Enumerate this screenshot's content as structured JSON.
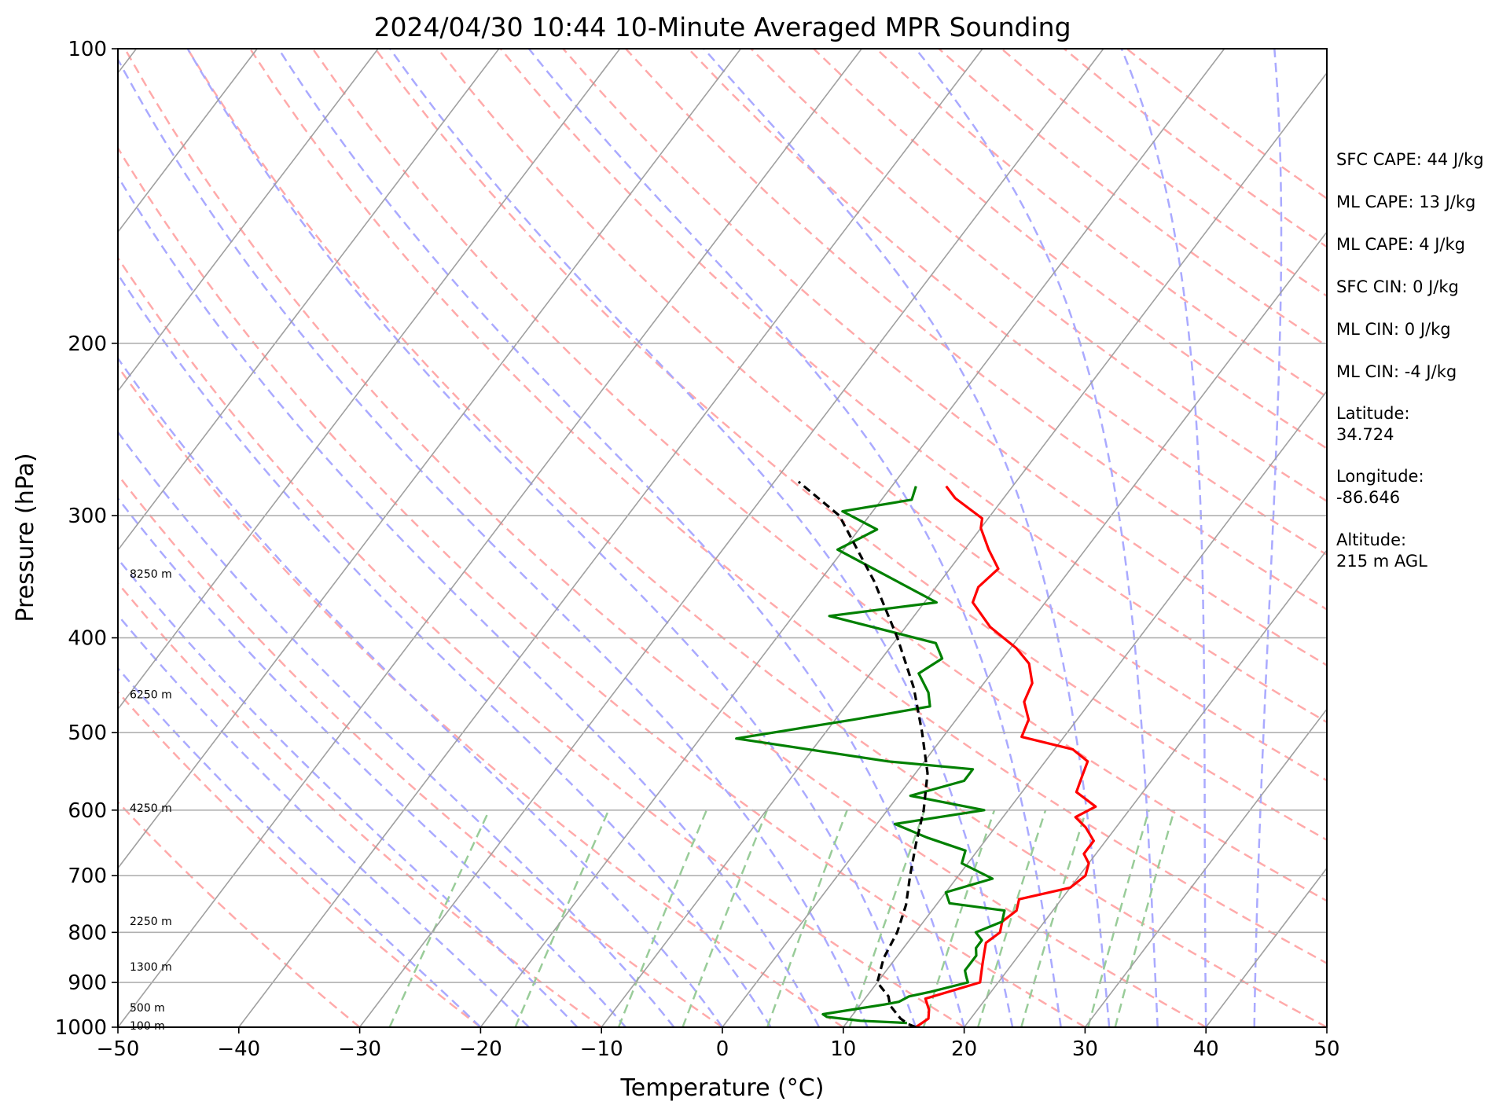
{
  "chart_data": {
    "type": "skew-t",
    "title": "2024/04/30 10:44 10-Minute Averaged MPR Sounding",
    "xlabel": "Temperature (°C)",
    "ylabel": "Pressure (hPa)",
    "xlim": [
      -50,
      50
    ],
    "ylim": [
      1000,
      100
    ],
    "y_scale": "log",
    "grid": true,
    "x_ticks": [
      "−50",
      "−40",
      "−30",
      "−20",
      "−10",
      "0",
      "10",
      "20",
      "30",
      "40",
      "50"
    ],
    "y_ticks": [
      {
        "p": 100,
        "label": "100"
      },
      {
        "p": 200,
        "label": "200"
      },
      {
        "p": 300,
        "label": "300"
      },
      {
        "p": 400,
        "label": "400"
      },
      {
        "p": 500,
        "label": "500"
      },
      {
        "p": 600,
        "label": "600"
      },
      {
        "p": 700,
        "label": "700"
      },
      {
        "p": 800,
        "label": "800"
      },
      {
        "p": 900,
        "label": "900"
      },
      {
        "p": 1000,
        "label": "1000"
      }
    ],
    "height_labels": [
      {
        "p": 996,
        "label": "100 m"
      },
      {
        "p": 955,
        "label": "500 m"
      },
      {
        "p": 867,
        "label": "1300 m"
      },
      {
        "p": 779,
        "label": "2250 m"
      },
      {
        "p": 597,
        "label": "4250 m"
      },
      {
        "p": 457,
        "label": "6250 m"
      },
      {
        "p": 344,
        "label": "8250 m"
      }
    ],
    "series": [
      {
        "role": "temperature",
        "color": "#ff0000",
        "points": [
          [
            16,
            1000
          ],
          [
            16.5,
            980
          ],
          [
            16,
            960
          ],
          [
            15,
            935
          ],
          [
            18.5,
            900
          ],
          [
            18,
            880
          ],
          [
            17.5,
            860
          ],
          [
            17,
            840
          ],
          [
            16.5,
            820
          ],
          [
            17,
            800
          ],
          [
            16.5,
            780
          ],
          [
            17,
            760
          ],
          [
            16.5,
            740
          ],
          [
            20,
            720
          ],
          [
            20.5,
            700
          ],
          [
            20,
            680
          ],
          [
            19,
            665
          ],
          [
            19,
            645
          ],
          [
            17.5,
            625
          ],
          [
            16,
            610
          ],
          [
            17,
            595
          ],
          [
            14.5,
            575
          ],
          [
            14,
            555
          ],
          [
            13.5,
            535
          ],
          [
            11.5,
            520
          ],
          [
            6.5,
            505
          ],
          [
            6,
            485
          ],
          [
            4.5,
            465
          ],
          [
            4,
            445
          ],
          [
            2.5,
            425
          ],
          [
            0.5,
            410
          ],
          [
            -3,
            390
          ],
          [
            -6,
            368
          ],
          [
            -6.5,
            355
          ],
          [
            -6,
            340
          ],
          [
            -8,
            325
          ],
          [
            -10,
            309
          ],
          [
            -10.5,
            302
          ],
          [
            -14,
            288
          ],
          [
            -15.5,
            280
          ]
        ]
      },
      {
        "role": "dewpoint",
        "color": "#008000",
        "points": [
          [
            15,
            990
          ],
          [
            11,
            985
          ],
          [
            8,
            976
          ],
          [
            7.5,
            970
          ],
          [
            12,
            948
          ],
          [
            13,
            942
          ],
          [
            13.5,
            930
          ],
          [
            15,
            920
          ],
          [
            17.5,
            900
          ],
          [
            17,
            888
          ],
          [
            16.5,
            875
          ],
          [
            16.5,
            860
          ],
          [
            16.5,
            845
          ],
          [
            16,
            830
          ],
          [
            16,
            815
          ],
          [
            15,
            800
          ],
          [
            16.5,
            780
          ],
          [
            16,
            760
          ],
          [
            11,
            747
          ],
          [
            10,
            728
          ],
          [
            13,
            705
          ],
          [
            9.5,
            680
          ],
          [
            9,
            660
          ],
          [
            5,
            640
          ],
          [
            1.5,
            620
          ],
          [
            8,
            600
          ],
          [
            1,
            580
          ],
          [
            4.5,
            560
          ],
          [
            4.5,
            545
          ],
          [
            -3,
            535
          ],
          [
            -17,
            507
          ],
          [
            -8.5,
            485
          ],
          [
            -3,
            470
          ],
          [
            -4,
            455
          ],
          [
            -6,
            435
          ],
          [
            -5,
            420
          ],
          [
            -6.5,
            405
          ],
          [
            -17,
            380
          ],
          [
            -9,
            368
          ],
          [
            -20.5,
            325
          ],
          [
            -18.5,
            310
          ],
          [
            -22.5,
            297
          ],
          [
            -17.5,
            289
          ],
          [
            -18,
            280
          ]
        ]
      },
      {
        "role": "parcel",
        "color": "#000000",
        "points": [
          [
            16,
            1000
          ],
          [
            15.2,
            993
          ],
          [
            14.2,
            980
          ],
          [
            12.5,
            950
          ],
          [
            11.8,
            930
          ],
          [
            10,
            900
          ],
          [
            9,
            850
          ],
          [
            8.5,
            800
          ],
          [
            7.5,
            750
          ],
          [
            6,
            700
          ],
          [
            4.5,
            650
          ],
          [
            3,
            600
          ],
          [
            1,
            550
          ],
          [
            -2,
            500
          ],
          [
            -5.5,
            450
          ],
          [
            -10,
            400
          ],
          [
            -15.5,
            350
          ],
          [
            -22.5,
            300
          ],
          [
            -28,
            277
          ]
        ]
      }
    ],
    "background_lines": {
      "isotherm_color": "#a0a0a0",
      "dry_adiabat_color": "#ffaaaa",
      "moist_adiabat_color": "#aaaaff",
      "mixing_ratio_color": "#99cc99"
    },
    "info_panel": [
      "SFC CAPE: 44 J/kg",
      "ML CAPE: 13 J/kg",
      "ML CAPE: 4 J/kg",
      "SFC CIN: 0 J/kg",
      "ML CIN: 0 J/kg",
      "ML CIN: -4 J/kg",
      "Latitude:",
      "34.724",
      "Longitude:",
      "-86.646",
      "Altitude:",
      "215 m AGL"
    ]
  }
}
